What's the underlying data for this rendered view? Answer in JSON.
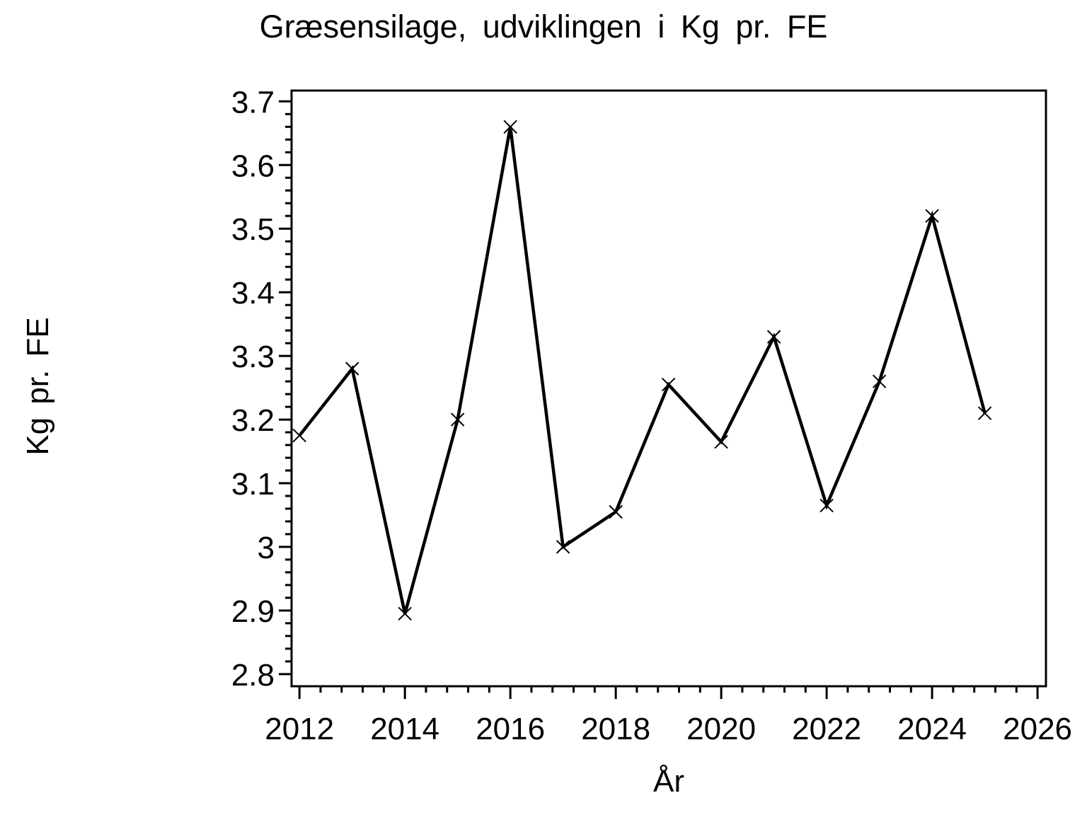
{
  "chart_data": {
    "type": "line",
    "title": "Græsensilage, udviklingen i Kg pr. FE",
    "xlabel": "År",
    "ylabel": "Kg pr. FE",
    "x": [
      2012,
      2013,
      2014,
      2015,
      2016,
      2017,
      2018,
      2019,
      2020,
      2021,
      2022,
      2023,
      2024,
      2025
    ],
    "series": [
      {
        "name": "Kg pr. FE",
        "values": [
          3.175,
          3.28,
          2.895,
          3.2,
          3.66,
          3.0,
          3.055,
          3.255,
          3.165,
          3.33,
          3.065,
          3.26,
          3.52,
          3.21
        ]
      }
    ],
    "marker": "x",
    "line_color": "#000000",
    "background_color": "#ffffff",
    "grid": false,
    "legend": "none",
    "xlim": [
      2011.85,
      2026.16
    ],
    "ylim": [
      2.781,
      3.717
    ],
    "xticks": {
      "values": [
        2012,
        2014,
        2016,
        2018,
        2020,
        2022,
        2024,
        2026
      ],
      "labels": [
        "2012",
        "2014",
        "2016",
        "2018",
        "2020",
        "2022",
        "2024",
        "2026"
      ],
      "minor_between": 4
    },
    "yticks": {
      "values": [
        2.8,
        2.9,
        3.0,
        3.1,
        3.2,
        3.3,
        3.4,
        3.5,
        3.6,
        3.7
      ],
      "labels": [
        "2.8",
        "2.9",
        "3",
        "3.1",
        "3.2",
        "3.3",
        "3.4",
        "3.5",
        "3.6",
        "3.7"
      ],
      "minor_between": 4
    }
  }
}
